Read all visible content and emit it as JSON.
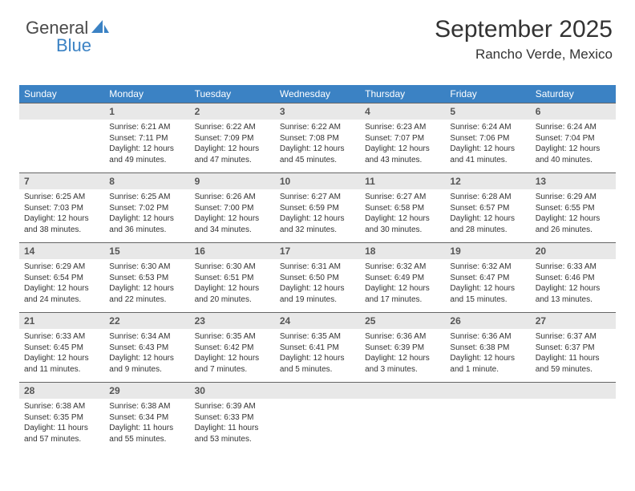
{
  "logo": {
    "word1": "General",
    "word2": "Blue"
  },
  "title": "September 2025",
  "location": "Rancho Verde, Mexico",
  "colors": {
    "header_bg": "#3b82c4",
    "header_text": "#ffffff",
    "daynum_bg": "#e8e8e8",
    "daynum_text": "#555555",
    "body_text": "#333333",
    "border": "#666666",
    "logo_gray": "#4a4a4a",
    "logo_blue": "#3b82c4"
  },
  "day_headers": [
    "Sunday",
    "Monday",
    "Tuesday",
    "Wednesday",
    "Thursday",
    "Friday",
    "Saturday"
  ],
  "weeks": [
    [
      null,
      {
        "n": "1",
        "sr": "6:21 AM",
        "ss": "7:11 PM",
        "dl": "12 hours and 49 minutes."
      },
      {
        "n": "2",
        "sr": "6:22 AM",
        "ss": "7:09 PM",
        "dl": "12 hours and 47 minutes."
      },
      {
        "n": "3",
        "sr": "6:22 AM",
        "ss": "7:08 PM",
        "dl": "12 hours and 45 minutes."
      },
      {
        "n": "4",
        "sr": "6:23 AM",
        "ss": "7:07 PM",
        "dl": "12 hours and 43 minutes."
      },
      {
        "n": "5",
        "sr": "6:24 AM",
        "ss": "7:06 PM",
        "dl": "12 hours and 41 minutes."
      },
      {
        "n": "6",
        "sr": "6:24 AM",
        "ss": "7:04 PM",
        "dl": "12 hours and 40 minutes."
      }
    ],
    [
      {
        "n": "7",
        "sr": "6:25 AM",
        "ss": "7:03 PM",
        "dl": "12 hours and 38 minutes."
      },
      {
        "n": "8",
        "sr": "6:25 AM",
        "ss": "7:02 PM",
        "dl": "12 hours and 36 minutes."
      },
      {
        "n": "9",
        "sr": "6:26 AM",
        "ss": "7:00 PM",
        "dl": "12 hours and 34 minutes."
      },
      {
        "n": "10",
        "sr": "6:27 AM",
        "ss": "6:59 PM",
        "dl": "12 hours and 32 minutes."
      },
      {
        "n": "11",
        "sr": "6:27 AM",
        "ss": "6:58 PM",
        "dl": "12 hours and 30 minutes."
      },
      {
        "n": "12",
        "sr": "6:28 AM",
        "ss": "6:57 PM",
        "dl": "12 hours and 28 minutes."
      },
      {
        "n": "13",
        "sr": "6:29 AM",
        "ss": "6:55 PM",
        "dl": "12 hours and 26 minutes."
      }
    ],
    [
      {
        "n": "14",
        "sr": "6:29 AM",
        "ss": "6:54 PM",
        "dl": "12 hours and 24 minutes."
      },
      {
        "n": "15",
        "sr": "6:30 AM",
        "ss": "6:53 PM",
        "dl": "12 hours and 22 minutes."
      },
      {
        "n": "16",
        "sr": "6:30 AM",
        "ss": "6:51 PM",
        "dl": "12 hours and 20 minutes."
      },
      {
        "n": "17",
        "sr": "6:31 AM",
        "ss": "6:50 PM",
        "dl": "12 hours and 19 minutes."
      },
      {
        "n": "18",
        "sr": "6:32 AM",
        "ss": "6:49 PM",
        "dl": "12 hours and 17 minutes."
      },
      {
        "n": "19",
        "sr": "6:32 AM",
        "ss": "6:47 PM",
        "dl": "12 hours and 15 minutes."
      },
      {
        "n": "20",
        "sr": "6:33 AM",
        "ss": "6:46 PM",
        "dl": "12 hours and 13 minutes."
      }
    ],
    [
      {
        "n": "21",
        "sr": "6:33 AM",
        "ss": "6:45 PM",
        "dl": "12 hours and 11 minutes."
      },
      {
        "n": "22",
        "sr": "6:34 AM",
        "ss": "6:43 PM",
        "dl": "12 hours and 9 minutes."
      },
      {
        "n": "23",
        "sr": "6:35 AM",
        "ss": "6:42 PM",
        "dl": "12 hours and 7 minutes."
      },
      {
        "n": "24",
        "sr": "6:35 AM",
        "ss": "6:41 PM",
        "dl": "12 hours and 5 minutes."
      },
      {
        "n": "25",
        "sr": "6:36 AM",
        "ss": "6:39 PM",
        "dl": "12 hours and 3 minutes."
      },
      {
        "n": "26",
        "sr": "6:36 AM",
        "ss": "6:38 PM",
        "dl": "12 hours and 1 minute."
      },
      {
        "n": "27",
        "sr": "6:37 AM",
        "ss": "6:37 PM",
        "dl": "11 hours and 59 minutes."
      }
    ],
    [
      {
        "n": "28",
        "sr": "6:38 AM",
        "ss": "6:35 PM",
        "dl": "11 hours and 57 minutes."
      },
      {
        "n": "29",
        "sr": "6:38 AM",
        "ss": "6:34 PM",
        "dl": "11 hours and 55 minutes."
      },
      {
        "n": "30",
        "sr": "6:39 AM",
        "ss": "6:33 PM",
        "dl": "11 hours and 53 minutes."
      },
      null,
      null,
      null,
      null
    ]
  ],
  "labels": {
    "sunrise": "Sunrise: ",
    "sunset": "Sunset: ",
    "daylight": "Daylight: "
  }
}
